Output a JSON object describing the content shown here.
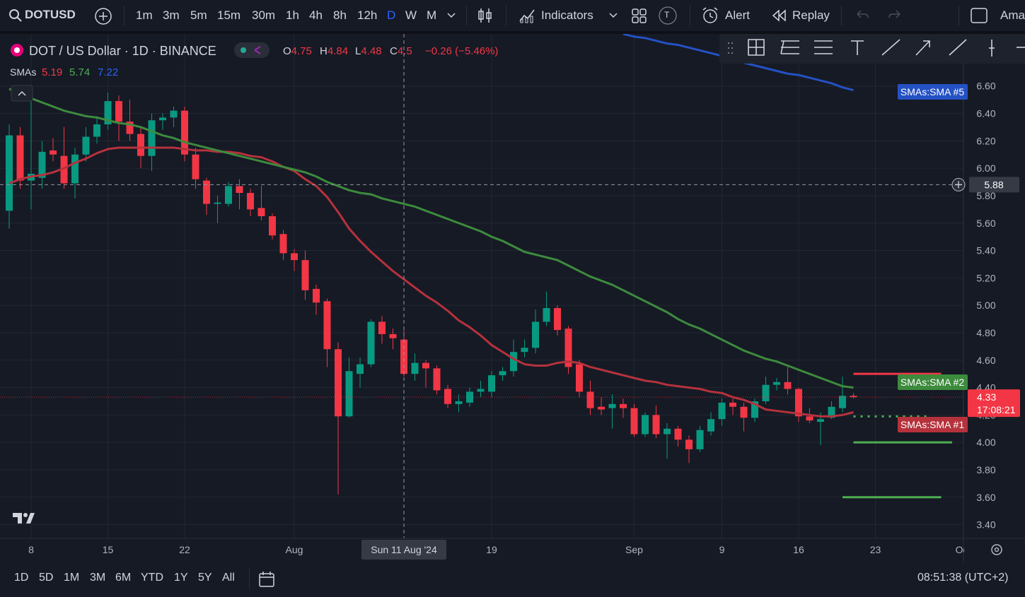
{
  "toolbar": {
    "symbol": "DOTUSD",
    "intervals": [
      "1m",
      "3m",
      "5m",
      "15m",
      "30m",
      "1h",
      "4h",
      "8h",
      "12h",
      "D",
      "W",
      "M"
    ],
    "active_interval": "D",
    "indicators": "Indicators",
    "badge": "T",
    "alert": "Alert",
    "replay": "Replay",
    "account": "Ama"
  },
  "legend": {
    "title": "DOT / US Dollar · 1D · BINANCE",
    "ohlc_letters": [
      "O",
      "H",
      "L",
      "C"
    ],
    "change": "−0.26 (−5.46%)",
    "sma_label": "SMAs",
    "sma_values": [
      5.19,
      5.74,
      7.22
    ],
    "sma_colors": [
      "#f23645",
      "#4caf50",
      "#2962ff"
    ]
  },
  "bottom": {
    "ranges": [
      "1D",
      "5D",
      "1M",
      "3M",
      "6M",
      "YTD",
      "1Y",
      "5Y",
      "All"
    ],
    "clock": "08:51:38 (UTC+2)"
  },
  "chart_data": {
    "type": "candlestick",
    "up_color": "#089981",
    "down_color": "#f23645",
    "x": [
      "2024-07-06",
      "2024-07-07",
      "2024-07-08",
      "2024-07-09",
      "2024-07-10",
      "2024-07-11",
      "2024-07-12",
      "2024-07-13",
      "2024-07-14",
      "2024-07-15",
      "2024-07-16",
      "2024-07-17",
      "2024-07-18",
      "2024-07-19",
      "2024-07-20",
      "2024-07-21",
      "2024-07-22",
      "2024-07-23",
      "2024-07-24",
      "2024-07-25",
      "2024-07-26",
      "2024-07-27",
      "2024-07-28",
      "2024-07-29",
      "2024-07-30",
      "2024-07-31",
      "2024-08-01",
      "2024-08-02",
      "2024-08-03",
      "2024-08-04",
      "2024-08-05",
      "2024-08-06",
      "2024-08-07",
      "2024-08-08",
      "2024-08-09",
      "2024-08-10",
      "2024-08-11",
      "2024-08-12",
      "2024-08-13",
      "2024-08-14",
      "2024-08-15",
      "2024-08-16",
      "2024-08-17",
      "2024-08-18",
      "2024-08-19",
      "2024-08-20",
      "2024-08-21",
      "2024-08-22",
      "2024-08-23",
      "2024-08-24",
      "2024-08-25",
      "2024-08-26",
      "2024-08-27",
      "2024-08-28",
      "2024-08-29",
      "2024-08-30",
      "2024-08-31",
      "2024-09-01",
      "2024-09-02",
      "2024-09-03",
      "2024-09-04",
      "2024-09-05",
      "2024-09-06",
      "2024-09-07",
      "2024-09-08",
      "2024-09-09",
      "2024-09-10",
      "2024-09-11",
      "2024-09-12",
      "2024-09-13",
      "2024-09-14",
      "2024-09-15",
      "2024-09-16",
      "2024-09-17",
      "2024-09-18",
      "2024-09-19",
      "2024-09-20",
      "2024-09-21"
    ],
    "open": [
      5.69,
      6.24,
      5.91,
      5.93,
      6.13,
      6.09,
      5.89,
      6.1,
      6.23,
      6.32,
      6.49,
      6.34,
      6.25,
      6.09,
      6.35,
      6.37,
      6.42,
      6.1,
      5.91,
      5.74,
      5.74,
      5.87,
      5.82,
      5.71,
      5.65,
      5.52,
      5.38,
      5.33,
      5.12,
      5.03,
      4.68,
      4.19,
      4.5,
      4.57,
      4.88,
      4.79,
      4.75,
      4.5,
      4.58,
      4.54,
      4.39,
      4.28,
      4.29,
      4.37,
      4.37,
      4.49,
      4.52,
      4.66,
      4.69,
      4.88,
      4.98,
      4.83,
      4.57,
      4.37,
      4.26,
      4.25,
      4.28,
      4.25,
      4.06,
      4.2,
      4.06,
      4.1,
      4.02,
      3.95,
      4.08,
      4.17,
      4.29,
      4.26,
      4.18,
      4.3,
      4.42,
      4.44,
      4.39,
      4.19,
      4.15,
      4.18,
      4.25,
      4.34
    ],
    "high": [
      6.32,
      6.3,
      6.5,
      6.2,
      6.22,
      6.3,
      6.15,
      6.3,
      6.38,
      6.55,
      6.53,
      6.5,
      6.3,
      6.4,
      6.4,
      6.45,
      6.45,
      6.15,
      5.93,
      5.8,
      5.9,
      5.92,
      5.85,
      5.87,
      5.67,
      5.55,
      5.41,
      5.4,
      5.15,
      5.05,
      4.73,
      4.62,
      4.62,
      4.9,
      4.92,
      4.83,
      4.84,
      4.65,
      4.6,
      4.56,
      4.42,
      4.35,
      4.4,
      4.45,
      4.52,
      4.55,
      4.75,
      4.75,
      4.97,
      5.1,
      5.0,
      4.85,
      4.6,
      4.45,
      4.33,
      4.35,
      4.32,
      4.28,
      4.22,
      4.27,
      4.14,
      4.12,
      4.05,
      4.12,
      4.22,
      4.32,
      4.32,
      4.29,
      4.32,
      4.48,
      4.47,
      4.55,
      4.4,
      4.25,
      4.22,
      4.3,
      4.48,
      4.36
    ],
    "low": [
      5.56,
      5.85,
      5.7,
      5.85,
      6.05,
      5.85,
      5.78,
      6.05,
      6.18,
      6.28,
      6.2,
      6.2,
      6.0,
      5.98,
      6.28,
      6.3,
      6.05,
      5.85,
      5.66,
      5.6,
      5.72,
      5.7,
      5.65,
      5.62,
      5.48,
      5.33,
      5.25,
      5.04,
      4.93,
      4.55,
      3.62,
      4.18,
      4.4,
      4.55,
      4.72,
      4.68,
      4.48,
      4.45,
      4.4,
      4.35,
      4.25,
      4.22,
      4.26,
      4.33,
      4.33,
      4.45,
      4.48,
      4.62,
      4.65,
      4.85,
      4.78,
      4.5,
      4.33,
      4.2,
      4.2,
      4.1,
      4.18,
      4.04,
      4.04,
      4.03,
      3.88,
      3.97,
      3.85,
      3.93,
      4.05,
      4.12,
      4.2,
      4.08,
      4.15,
      4.28,
      4.38,
      4.35,
      4.15,
      4.14,
      3.98,
      4.17,
      4.22,
      4.32
    ],
    "close": [
      6.24,
      5.91,
      5.96,
      6.12,
      6.1,
      5.89,
      6.1,
      6.23,
      6.32,
      6.49,
      6.34,
      6.25,
      6.09,
      6.35,
      6.37,
      6.42,
      6.1,
      5.92,
      5.74,
      5.75,
      5.87,
      5.82,
      5.7,
      5.65,
      5.51,
      5.38,
      5.33,
      5.11,
      5.02,
      4.68,
      4.19,
      4.52,
      4.57,
      4.88,
      4.79,
      4.76,
      4.5,
      4.58,
      4.54,
      4.38,
      4.28,
      4.3,
      4.37,
      4.39,
      4.49,
      4.52,
      4.66,
      4.69,
      4.88,
      4.98,
      4.82,
      4.55,
      4.37,
      4.25,
      4.24,
      4.28,
      4.25,
      4.06,
      4.2,
      4.06,
      4.1,
      4.02,
      3.95,
      4.09,
      4.17,
      4.29,
      4.26,
      4.18,
      4.3,
      4.42,
      4.44,
      4.39,
      4.19,
      4.16,
      4.17,
      4.26,
      4.34,
      4.33
    ],
    "series": [
      {
        "name": "SMAs:SMA #1",
        "color": "#b5323c",
        "values": [
          5.89,
          5.92,
          5.94,
          5.95,
          5.97,
          6.0,
          6.04,
          6.07,
          6.11,
          6.14,
          6.15,
          6.15,
          6.15,
          6.15,
          6.15,
          6.15,
          6.14,
          6.13,
          6.13,
          6.12,
          6.12,
          6.11,
          6.09,
          6.08,
          6.05,
          6.01,
          5.98,
          5.92,
          5.87,
          5.79,
          5.68,
          5.56,
          5.47,
          5.39,
          5.32,
          5.25,
          5.19,
          5.13,
          5.07,
          5.02,
          4.96,
          4.89,
          4.84,
          4.78,
          4.71,
          4.66,
          4.61,
          4.57,
          4.56,
          4.56,
          4.58,
          4.59,
          4.58,
          4.55,
          4.53,
          4.51,
          4.49,
          4.47,
          4.45,
          4.44,
          4.42,
          4.41,
          4.4,
          4.39,
          4.37,
          4.36,
          4.33,
          4.31,
          4.28,
          4.24,
          4.23,
          4.22,
          4.21,
          4.2,
          4.19,
          4.19,
          4.2,
          4.22
        ]
      },
      {
        "name": "SMAs:SMA #2",
        "color": "#3d8b3d",
        "values": [
          6.58,
          6.54,
          6.51,
          6.48,
          6.45,
          6.42,
          6.4,
          6.38,
          6.37,
          6.35,
          6.33,
          6.32,
          6.3,
          6.27,
          6.24,
          6.22,
          6.19,
          6.17,
          6.15,
          6.13,
          6.11,
          6.09,
          6.07,
          6.05,
          6.03,
          6.01,
          5.99,
          5.97,
          5.94,
          5.9,
          5.87,
          5.84,
          5.82,
          5.81,
          5.78,
          5.76,
          5.74,
          5.72,
          5.69,
          5.66,
          5.63,
          5.6,
          5.57,
          5.54,
          5.5,
          5.47,
          5.43,
          5.39,
          5.37,
          5.35,
          5.33,
          5.29,
          5.25,
          5.21,
          5.18,
          5.15,
          5.11,
          5.07,
          5.03,
          4.99,
          4.95,
          4.9,
          4.86,
          4.83,
          4.79,
          4.75,
          4.71,
          4.67,
          4.64,
          4.61,
          4.59,
          4.56,
          4.53,
          4.5,
          4.47,
          4.44,
          4.41,
          4.4
        ]
      },
      {
        "name": "SMAs:SMA #5",
        "color": "#2451c4",
        "values": [
          null,
          null,
          null,
          null,
          null,
          null,
          null,
          null,
          null,
          null,
          null,
          null,
          null,
          null,
          null,
          null,
          null,
          null,
          null,
          null,
          null,
          null,
          null,
          null,
          null,
          null,
          null,
          null,
          null,
          null,
          null,
          null,
          null,
          null,
          null,
          null,
          null,
          null,
          null,
          null,
          null,
          null,
          null,
          null,
          null,
          null,
          null,
          null,
          null,
          null,
          null,
          null,
          null,
          null,
          null,
          null,
          6.98,
          6.96,
          6.95,
          6.93,
          6.91,
          6.9,
          6.88,
          6.86,
          6.84,
          6.82,
          6.8,
          6.77,
          6.75,
          6.73,
          6.71,
          6.69,
          6.68,
          6.66,
          6.64,
          6.62,
          6.59,
          6.57
        ]
      }
    ],
    "levels": [
      {
        "value": 4.5,
        "from": "2024-09-21",
        "to": "2024-09-29",
        "color": "#f23645",
        "style": "solid"
      },
      {
        "value": 4.19,
        "from": "2024-09-21",
        "to": "2024-09-28",
        "color": "#4caf50",
        "style": "dotted"
      },
      {
        "value": 4.0,
        "from": "2024-09-21",
        "to": "2024-09-30",
        "color": "#4caf50",
        "style": "solid"
      },
      {
        "value": 3.6,
        "from": "2024-09-20",
        "to": "2024-09-29",
        "color": "#4caf50",
        "style": "solid"
      }
    ],
    "ylim": [
      3.3,
      6.98
    ],
    "yticks": [
      {
        "value": 3.4,
        "label": "3.40"
      },
      {
        "value": 3.6,
        "label": "3.60"
      },
      {
        "value": 3.8,
        "label": "3.80"
      },
      {
        "value": 4.0,
        "label": "4.00"
      },
      {
        "value": 4.2,
        "label": "4.20"
      },
      {
        "value": 4.4,
        "label": "4.40"
      },
      {
        "value": 4.6,
        "label": "4.60"
      },
      {
        "value": 4.8,
        "label": "4.80"
      },
      {
        "value": 5.0,
        "label": "5.00"
      },
      {
        "value": 5.2,
        "label": "5.20"
      },
      {
        "value": 5.4,
        "label": "5.40"
      },
      {
        "value": 5.6,
        "label": "5.60"
      },
      {
        "value": 5.8,
        "label": "5.80"
      },
      {
        "value": 6.0,
        "label": "6.00"
      },
      {
        "value": 6.2,
        "label": "6.20"
      },
      {
        "value": 6.4,
        "label": "6.40"
      },
      {
        "value": 6.6,
        "label": "6.60"
      }
    ],
    "xticks": [
      {
        "value": "2024-07-08",
        "label": "8"
      },
      {
        "value": "2024-07-15",
        "label": "15"
      },
      {
        "value": "2024-07-22",
        "label": "22"
      },
      {
        "value": "2024-08-01",
        "label": "Aug"
      },
      {
        "value": "2024-08-19",
        "label": "19"
      },
      {
        "value": "2024-09-01",
        "label": "Sep"
      },
      {
        "value": "2024-09-09",
        "label": "9"
      },
      {
        "value": "2024-09-16",
        "label": "16"
      },
      {
        "value": "2024-09-23",
        "label": "23"
      },
      {
        "value": "2024-10-01",
        "label": "Oct"
      }
    ],
    "grid": true,
    "crosshair": {
      "x": "2024-08-11",
      "x_label": "Sun 11 Aug '24",
      "y": 5.88
    },
    "last_price": 4.33,
    "countdown": "17:08:21"
  }
}
